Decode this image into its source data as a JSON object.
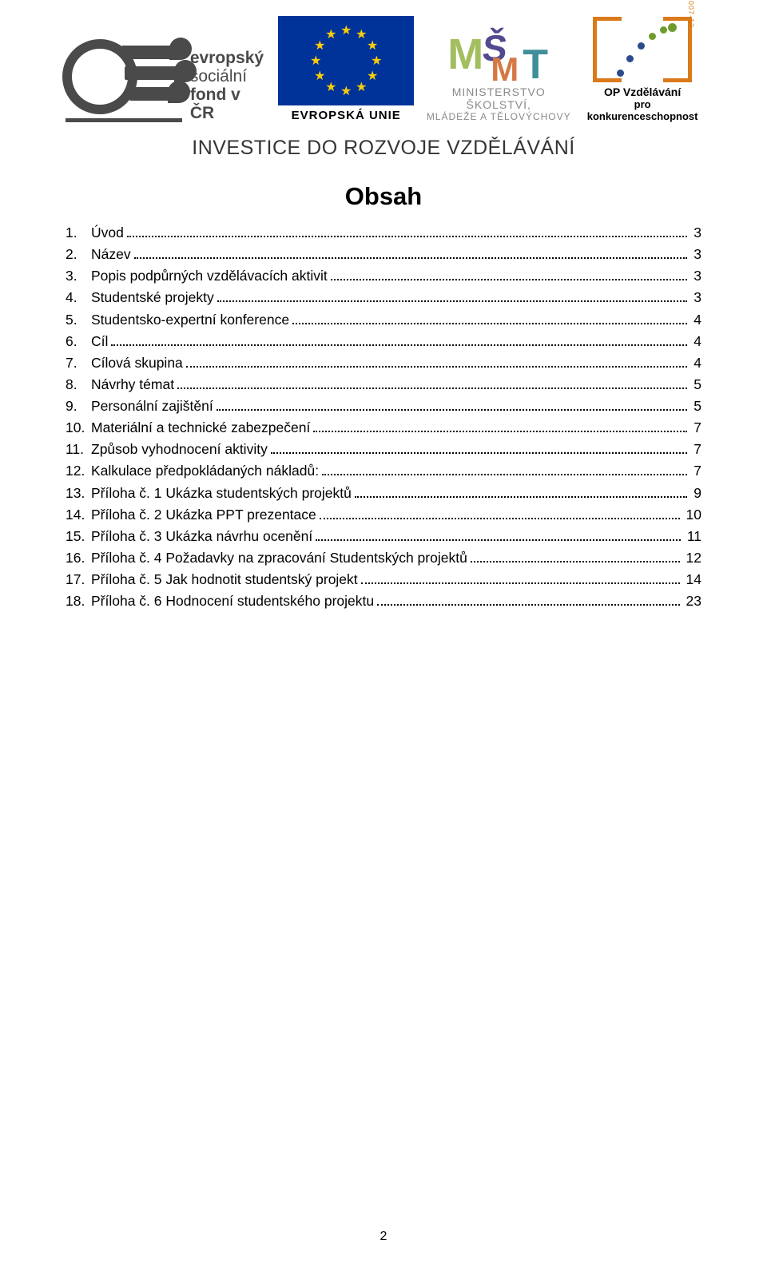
{
  "logos": {
    "esf": {
      "line1": "evropský",
      "line2": "sociální",
      "line3": "fond v ČR"
    },
    "eu": {
      "label": "EVROPSKÁ UNIE",
      "flag_bg": "#003399",
      "star_color": "#f8cc0a"
    },
    "msmt": {
      "glyphs": [
        "M",
        "Š",
        "M",
        "T"
      ],
      "line1": "MINISTERSTVO ŠKOLSTVÍ,",
      "line2": "MLÁDEŽE A TĚLOVÝCHOVY"
    },
    "op": {
      "side_label": "2007-13",
      "line1": "OP Vzdělávání",
      "line2": "pro konkurenceschopnost",
      "bracket_color": "#da7a1a"
    }
  },
  "tagline": "INVESTICE DO ROZVOJE VZDĚLÁVÁNÍ",
  "title": "Obsah",
  "toc": [
    {
      "num": "1.",
      "label": "Úvod",
      "page": "3"
    },
    {
      "num": "2.",
      "label": "Název",
      "page": "3"
    },
    {
      "num": "3.",
      "label": "Popis podpůrných vzdělávacích aktivit",
      "page": "3"
    },
    {
      "num": "4.",
      "label": "Studentské projekty",
      "page": "3"
    },
    {
      "num": "5.",
      "label": "Studentsko-expertní konference",
      "page": "4"
    },
    {
      "num": "6.",
      "label": "Cíl",
      "page": "4"
    },
    {
      "num": "7.",
      "label": "Cílová skupina",
      "page": "4"
    },
    {
      "num": "8.",
      "label": "Návrhy témat",
      "page": "5"
    },
    {
      "num": "9.",
      "label": "Personální zajištění",
      "page": "5"
    },
    {
      "num": "10.",
      "label": "Materiální a technické zabezpečení",
      "page": "7"
    },
    {
      "num": "11.",
      "label": "Způsob vyhodnocení aktivity",
      "page": "7"
    },
    {
      "num": "12.",
      "label": "Kalkulace předpokládaných nákladů:",
      "page": "7"
    },
    {
      "num": "13.",
      "label": "Příloha č. 1 Ukázka studentských projektů",
      "page": "9"
    },
    {
      "num": "14.",
      "label": "Příloha č. 2 Ukázka PPT prezentace",
      "page": "10"
    },
    {
      "num": "15.",
      "label": "Příloha č. 3 Ukázka návrhu ocenění",
      "page": "11"
    },
    {
      "num": "16.",
      "label": "Příloha č. 4 Požadavky na zpracování Studentských projektů",
      "page": "12"
    },
    {
      "num": "17.",
      "label": "Příloha č. 5 Jak hodnotit studentský projekt",
      "page": "14"
    },
    {
      "num": "18.",
      "label": "Příloha č. 6 Hodnocení studentského projektu",
      "page": "23"
    }
  ],
  "page_number": "2",
  "fonts": {
    "body_family": "Arial",
    "body_size_pt": 13,
    "title_size_pt": 24
  }
}
